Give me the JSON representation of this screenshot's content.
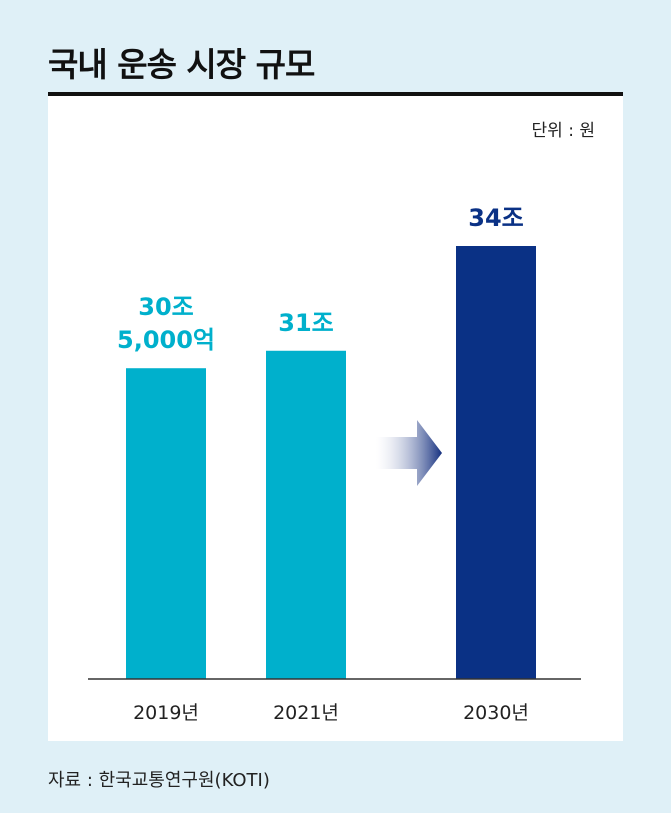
{
  "title": "국내 운송 시장 규모",
  "unit_label": "단위 : 원",
  "source": "자료 : 한국교통연구원(KOTI)",
  "colors": {
    "past_bar": "#00b0cc",
    "future_bar": "#0a3185",
    "arrow": "#15307f"
  },
  "chart_data": {
    "type": "bar",
    "categories": [
      "2019년",
      "2021년",
      "2030년"
    ],
    "values": [
      30.5,
      31,
      34
    ],
    "value_labels": [
      [
        "30조",
        "5,000억"
      ],
      [
        "31조"
      ],
      [
        "34조"
      ]
    ],
    "ylabel": "",
    "ylim": [
      21.6,
      34
    ],
    "grid": false,
    "legend": "none"
  }
}
